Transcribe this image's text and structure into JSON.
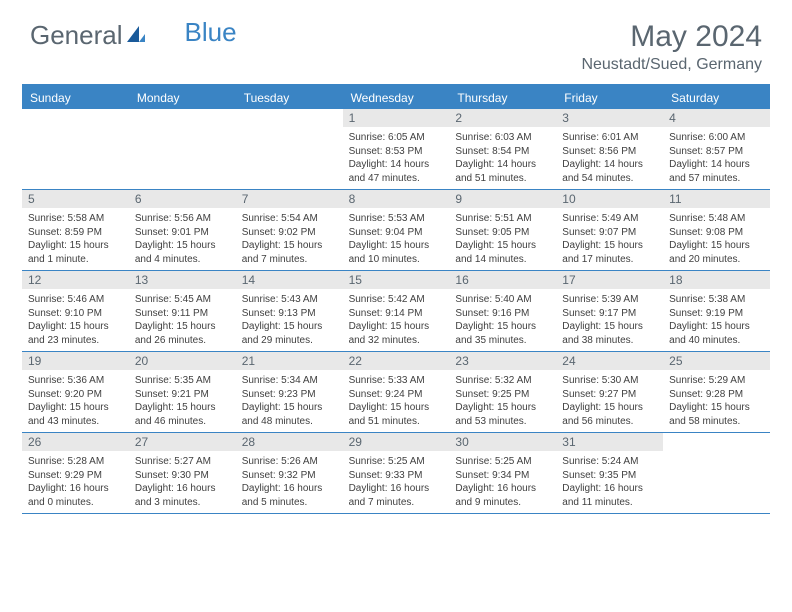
{
  "brand": {
    "part1": "General",
    "part2": "Blue"
  },
  "title": "May 2024",
  "location": "Neustadt/Sued, Germany",
  "colors": {
    "accent": "#3a84c4",
    "text_muted": "#5a6670",
    "day_number_bg": "#e8e8e8",
    "body_text": "#404040",
    "background": "#ffffff"
  },
  "weekdays": [
    "Sunday",
    "Monday",
    "Tuesday",
    "Wednesday",
    "Thursday",
    "Friday",
    "Saturday"
  ],
  "weeks": [
    [
      null,
      null,
      null,
      {
        "n": "1",
        "sunrise": "6:05 AM",
        "sunset": "8:53 PM",
        "daylight": "14 hours and 47 minutes."
      },
      {
        "n": "2",
        "sunrise": "6:03 AM",
        "sunset": "8:54 PM",
        "daylight": "14 hours and 51 minutes."
      },
      {
        "n": "3",
        "sunrise": "6:01 AM",
        "sunset": "8:56 PM",
        "daylight": "14 hours and 54 minutes."
      },
      {
        "n": "4",
        "sunrise": "6:00 AM",
        "sunset": "8:57 PM",
        "daylight": "14 hours and 57 minutes."
      }
    ],
    [
      {
        "n": "5",
        "sunrise": "5:58 AM",
        "sunset": "8:59 PM",
        "daylight": "15 hours and 1 minute."
      },
      {
        "n": "6",
        "sunrise": "5:56 AM",
        "sunset": "9:01 PM",
        "daylight": "15 hours and 4 minutes."
      },
      {
        "n": "7",
        "sunrise": "5:54 AM",
        "sunset": "9:02 PM",
        "daylight": "15 hours and 7 minutes."
      },
      {
        "n": "8",
        "sunrise": "5:53 AM",
        "sunset": "9:04 PM",
        "daylight": "15 hours and 10 minutes."
      },
      {
        "n": "9",
        "sunrise": "5:51 AM",
        "sunset": "9:05 PM",
        "daylight": "15 hours and 14 minutes."
      },
      {
        "n": "10",
        "sunrise": "5:49 AM",
        "sunset": "9:07 PM",
        "daylight": "15 hours and 17 minutes."
      },
      {
        "n": "11",
        "sunrise": "5:48 AM",
        "sunset": "9:08 PM",
        "daylight": "15 hours and 20 minutes."
      }
    ],
    [
      {
        "n": "12",
        "sunrise": "5:46 AM",
        "sunset": "9:10 PM",
        "daylight": "15 hours and 23 minutes."
      },
      {
        "n": "13",
        "sunrise": "5:45 AM",
        "sunset": "9:11 PM",
        "daylight": "15 hours and 26 minutes."
      },
      {
        "n": "14",
        "sunrise": "5:43 AM",
        "sunset": "9:13 PM",
        "daylight": "15 hours and 29 minutes."
      },
      {
        "n": "15",
        "sunrise": "5:42 AM",
        "sunset": "9:14 PM",
        "daylight": "15 hours and 32 minutes."
      },
      {
        "n": "16",
        "sunrise": "5:40 AM",
        "sunset": "9:16 PM",
        "daylight": "15 hours and 35 minutes."
      },
      {
        "n": "17",
        "sunrise": "5:39 AM",
        "sunset": "9:17 PM",
        "daylight": "15 hours and 38 minutes."
      },
      {
        "n": "18",
        "sunrise": "5:38 AM",
        "sunset": "9:19 PM",
        "daylight": "15 hours and 40 minutes."
      }
    ],
    [
      {
        "n": "19",
        "sunrise": "5:36 AM",
        "sunset": "9:20 PM",
        "daylight": "15 hours and 43 minutes."
      },
      {
        "n": "20",
        "sunrise": "5:35 AM",
        "sunset": "9:21 PM",
        "daylight": "15 hours and 46 minutes."
      },
      {
        "n": "21",
        "sunrise": "5:34 AM",
        "sunset": "9:23 PM",
        "daylight": "15 hours and 48 minutes."
      },
      {
        "n": "22",
        "sunrise": "5:33 AM",
        "sunset": "9:24 PM",
        "daylight": "15 hours and 51 minutes."
      },
      {
        "n": "23",
        "sunrise": "5:32 AM",
        "sunset": "9:25 PM",
        "daylight": "15 hours and 53 minutes."
      },
      {
        "n": "24",
        "sunrise": "5:30 AM",
        "sunset": "9:27 PM",
        "daylight": "15 hours and 56 minutes."
      },
      {
        "n": "25",
        "sunrise": "5:29 AM",
        "sunset": "9:28 PM",
        "daylight": "15 hours and 58 minutes."
      }
    ],
    [
      {
        "n": "26",
        "sunrise": "5:28 AM",
        "sunset": "9:29 PM",
        "daylight": "16 hours and 0 minutes."
      },
      {
        "n": "27",
        "sunrise": "5:27 AM",
        "sunset": "9:30 PM",
        "daylight": "16 hours and 3 minutes."
      },
      {
        "n": "28",
        "sunrise": "5:26 AM",
        "sunset": "9:32 PM",
        "daylight": "16 hours and 5 minutes."
      },
      {
        "n": "29",
        "sunrise": "5:25 AM",
        "sunset": "9:33 PM",
        "daylight": "16 hours and 7 minutes."
      },
      {
        "n": "30",
        "sunrise": "5:25 AM",
        "sunset": "9:34 PM",
        "daylight": "16 hours and 9 minutes."
      },
      {
        "n": "31",
        "sunrise": "5:24 AM",
        "sunset": "9:35 PM",
        "daylight": "16 hours and 11 minutes."
      },
      null
    ]
  ],
  "labels": {
    "sunrise": "Sunrise:",
    "sunset": "Sunset:",
    "daylight": "Daylight:"
  }
}
